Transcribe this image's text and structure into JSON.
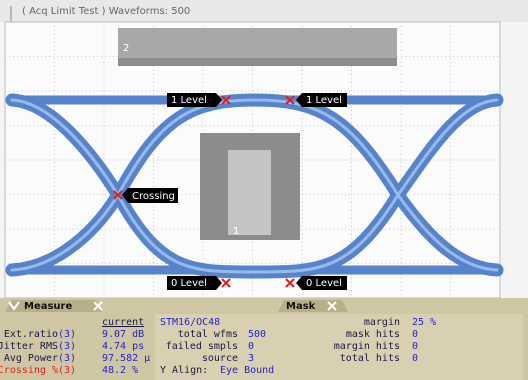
{
  "header": {
    "title": "( Acq Limit Test ) Waveforms: 500"
  },
  "masks": {
    "top": "2",
    "center": "1"
  },
  "markers": [
    "1 Level",
    "1 Level",
    "Crossing",
    "0 Level",
    "0 Level"
  ],
  "tabs": [
    "Measure",
    "Mask"
  ],
  "measure": {
    "header": "current",
    "rows": [
      {
        "label": "Ext.ratio",
        "channel": "(3)",
        "value": "9.07 dB"
      },
      {
        "label": "Jitter RMS",
        "channel": "(3)",
        "value": "4.74 ps"
      },
      {
        "label": "Avg Power",
        "channel": "(3)",
        "value": "97.582 µ"
      },
      {
        "label": "Crossing %",
        "channel": "(3)",
        "value": "48.2 %"
      }
    ]
  },
  "mask": {
    "standard": "STM16/OC48",
    "left": [
      {
        "label": "total wfms",
        "value": "500"
      },
      {
        "label": "failed smpls",
        "value": "0"
      },
      {
        "label": "source",
        "value": "3"
      }
    ],
    "align": {
      "label": "Y Align:",
      "value": "Eye Bound"
    },
    "right": [
      {
        "label": "margin",
        "value": "25 %"
      },
      {
        "label": "mask hits",
        "value": "0"
      },
      {
        "label": "margin hits",
        "value": "0"
      },
      {
        "label": "total hits",
        "value": "0"
      }
    ]
  }
}
